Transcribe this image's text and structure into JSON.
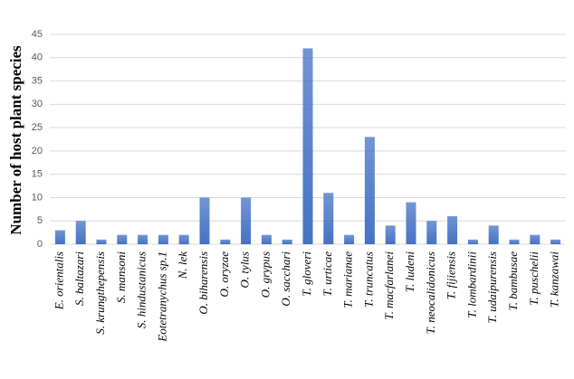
{
  "chart_data": {
    "type": "bar",
    "ylabel": "Number of host plant species",
    "categories": [
      "E. orientalis",
      "S. baltazari",
      "S. krungthepensis",
      "S. mansoni",
      "S. hindustanicus",
      "Eotetranychus sp.1",
      "N. lek",
      "O. biharensis",
      "O. oryzae",
      "O. tylus",
      "O. grypus",
      "O. sacchari",
      "T. gloveri",
      "T. urticae",
      "T. marianae",
      "T. truncatus",
      "T. macfarlanei",
      "T. ludeni",
      "T. neocalidonicus",
      "T. fijiensis",
      "T. lombardinii",
      "T. udaipurensis",
      "T. bambusae",
      "T. puschelii",
      "T. kanzawai"
    ],
    "values": [
      3,
      5,
      1,
      2,
      2,
      2,
      2,
      10,
      1,
      10,
      2,
      1,
      42,
      11,
      2,
      23,
      4,
      9,
      5,
      6,
      1,
      4,
      1,
      2,
      1
    ],
    "color": "#4472c4",
    "ylim": [
      0,
      45
    ],
    "yticks": [
      0,
      5,
      10,
      15,
      20,
      25,
      30,
      35,
      40,
      45
    ],
    "grid": true
  }
}
